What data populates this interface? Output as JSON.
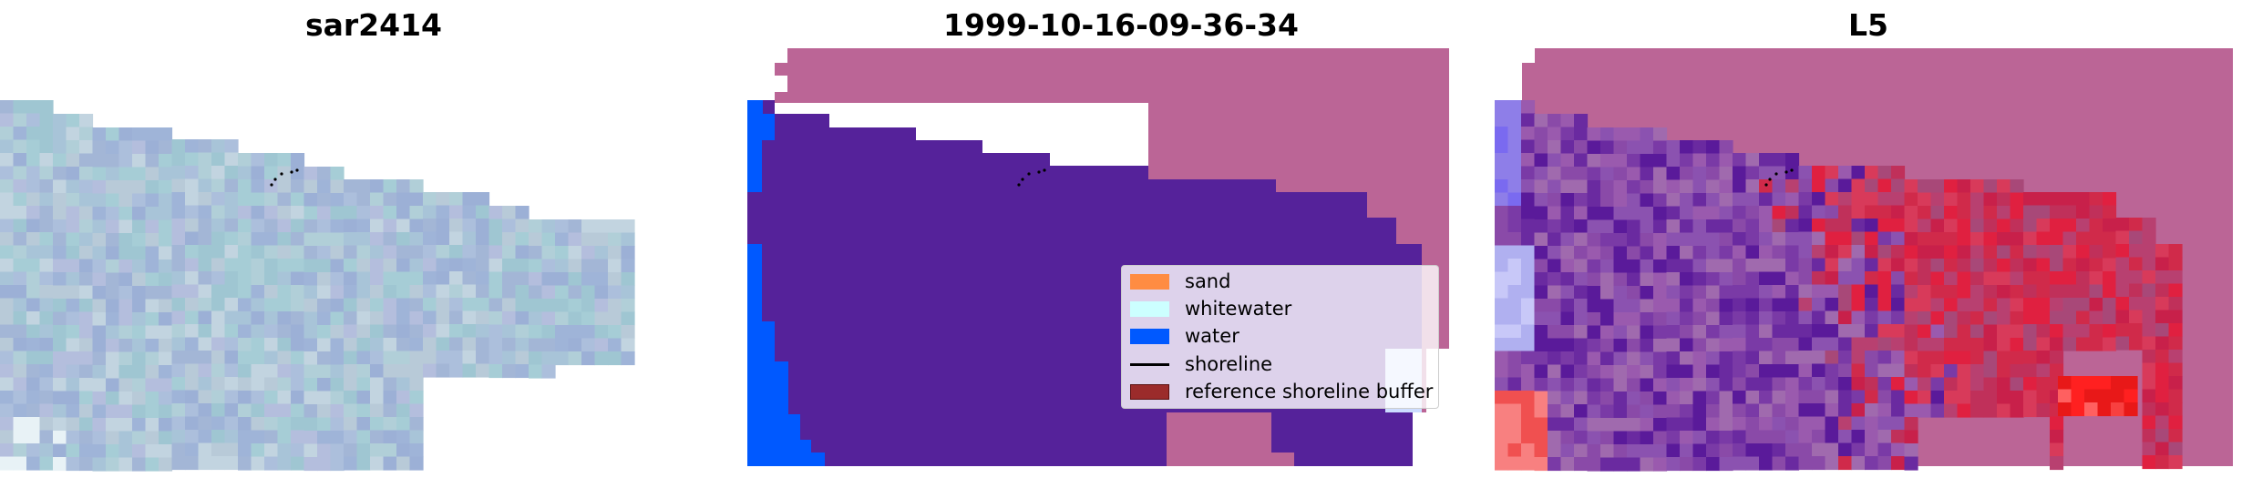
{
  "panels": [
    {
      "title": "sar2414"
    },
    {
      "title": "1999-10-16-09-36-34"
    },
    {
      "title": "L5"
    }
  ],
  "legend": {
    "items": [
      {
        "label": "sand",
        "color": "#ff8c42",
        "kind": "patch"
      },
      {
        "label": "whitewater",
        "color": "#ccffff",
        "kind": "patch"
      },
      {
        "label": "water",
        "color": "#0059ff",
        "kind": "patch"
      },
      {
        "label": "shoreline",
        "color": "#000000",
        "kind": "line"
      },
      {
        "label": "reference shoreline buffer",
        "color": "#9b2b2b",
        "kind": "patch"
      }
    ]
  },
  "colors": {
    "land": "#bb6596",
    "classified_water": "#55229a",
    "water": "#0059ff",
    "sar_base": "#a7b7d6"
  }
}
